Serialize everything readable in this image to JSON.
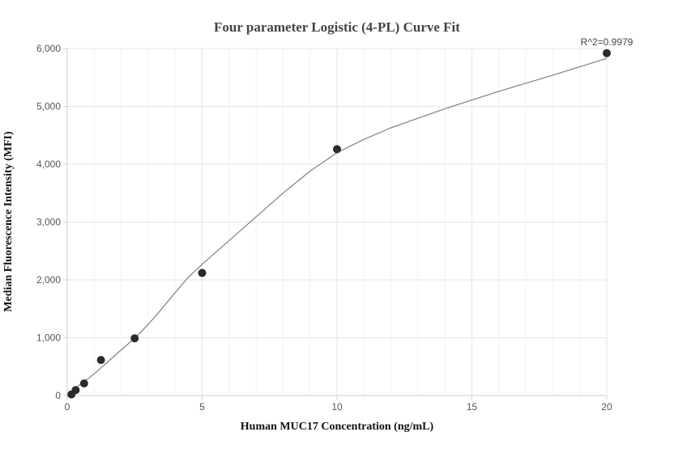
{
  "chart_data": {
    "type": "scatter",
    "title": "Four parameter Logistic (4-PL) Curve Fit",
    "xlabel": "Human MUC17 Concentration (ng/mL)",
    "ylabel": "Median Fluorescence Intensity (MFI)",
    "xlim": [
      0,
      20
    ],
    "ylim": [
      0,
      6000
    ],
    "x_ticks": [
      0,
      5,
      10,
      15,
      20
    ],
    "x_tick_labels": [
      "0",
      "5",
      "10",
      "15",
      "20"
    ],
    "y_ticks": [
      0,
      1000,
      2000,
      3000,
      4000,
      5000,
      6000
    ],
    "y_tick_labels": [
      "0",
      "1,000",
      "2,000",
      "3,000",
      "4,000",
      "5,000",
      "6,000"
    ],
    "annotation": "R^2=0.9979",
    "grid": true,
    "series": [
      {
        "type": "scatter",
        "x": [
          0.156,
          0.3125,
          0.625,
          1.25,
          2.5,
          5,
          10,
          20
        ],
        "y": [
          20,
          95,
          210,
          615,
          990,
          2120,
          4260,
          5920
        ]
      },
      {
        "type": "line",
        "x": [
          0.156,
          0.5,
          1,
          1.5,
          2,
          2.5,
          3,
          3.5,
          4,
          4.5,
          5,
          6,
          7,
          8,
          9,
          10,
          11,
          12,
          14,
          16,
          18,
          20
        ],
        "y": [
          75,
          200,
          375,
          580,
          790,
          990,
          1230,
          1500,
          1780,
          2050,
          2270,
          2680,
          3090,
          3500,
          3880,
          4200,
          4430,
          4630,
          4960,
          5260,
          5540,
          5830
        ]
      }
    ],
    "colors": {
      "marker": "#2b2b2b",
      "curve": "#808080",
      "grid": "#e6e6e6",
      "axis": "#cccccc"
    }
  }
}
